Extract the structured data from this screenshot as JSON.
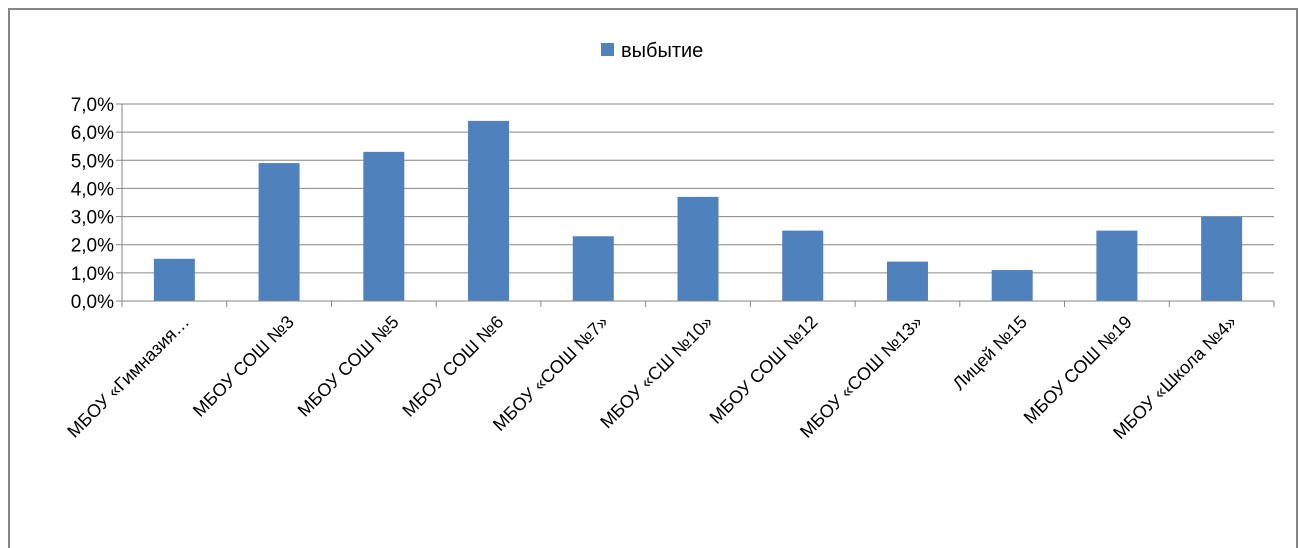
{
  "chart_data": {
    "type": "bar",
    "categories": [
      "МБОУ «Гимназия…",
      "МБОУ СОШ №3",
      "МБОУ СОШ №5",
      "МБОУ СОШ №6",
      "МБОУ «СОШ №7»",
      "МБОУ «СШ №10»",
      "МБОУ СОШ №12",
      "МБОУ «СОШ №13»",
      "Лицей №15",
      "МБОУ СОШ №19",
      "МБОУ «Школа №4»"
    ],
    "series": [
      {
        "name": "выбытие",
        "values": [
          1.5,
          4.9,
          5.3,
          6.4,
          2.3,
          3.7,
          2.5,
          1.4,
          1.1,
          2.5,
          3.0
        ]
      }
    ],
    "yticks": [
      "0,0%",
      "1,0%",
      "2,0%",
      "3,0%",
      "4,0%",
      "5,0%",
      "6,0%",
      "7,0%"
    ],
    "ylim": [
      0,
      7
    ],
    "grid": true,
    "legend_position": "top",
    "colors": {
      "bar": "#4f81bd",
      "grid": "#868686",
      "axis": "#868686"
    }
  }
}
